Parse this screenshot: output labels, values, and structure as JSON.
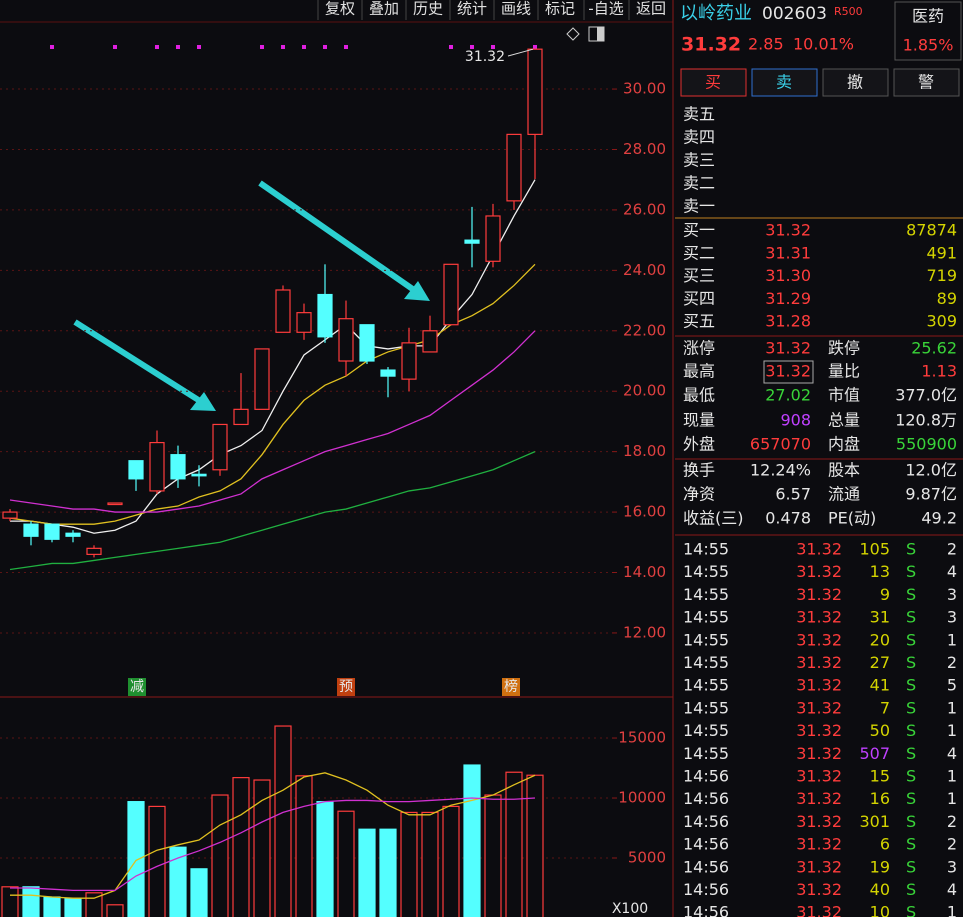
{
  "toolbar": [
    "复权",
    "叠加",
    "历史",
    "统计",
    "画线",
    "标记",
    "-自选",
    "返回"
  ],
  "quote": {
    "name": "以岭药业",
    "code": "002603",
    "badge": "R500",
    "sector": "医药",
    "sector_change": "1.85%",
    "price": "31.32",
    "change": "2.85",
    "change_pct": "10.01%"
  },
  "actions": [
    "买",
    "卖",
    "撤",
    "警"
  ],
  "ask_levels": [
    "卖五",
    "卖四",
    "卖三",
    "卖二",
    "卖一"
  ],
  "bid_levels": [
    [
      "买一",
      "31.32",
      "87874"
    ],
    [
      "买二",
      "31.31",
      "491"
    ],
    [
      "买三",
      "31.30",
      "719"
    ],
    [
      "买四",
      "31.29",
      "89"
    ],
    [
      "买五",
      "31.28",
      "309"
    ]
  ],
  "stats": [
    [
      "涨停",
      "31.32",
      "跌停",
      "25.62"
    ],
    [
      "最高",
      "31.32",
      "量比",
      "1.13"
    ],
    [
      "最低",
      "27.02",
      "市值",
      "377.0亿"
    ],
    [
      "现量",
      "908",
      "总量",
      "120.8万"
    ],
    [
      "外盘",
      "657070",
      "内盘",
      "550900"
    ],
    [
      "换手",
      "12.24%",
      "股本",
      "12.0亿"
    ],
    [
      "净资",
      "6.57",
      "流通",
      "9.87亿"
    ],
    [
      "收益(三)",
      "0.478",
      "PE(动)",
      "49.2"
    ]
  ],
  "trades": [
    {
      "time": "14:55",
      "price": "31.32",
      "volume": "105",
      "side": "S",
      "count": "2",
      "volume_color": "#d4d400"
    },
    {
      "time": "14:55",
      "price": "31.32",
      "volume": "13",
      "side": "S",
      "count": "4",
      "volume_color": "#d4d400"
    },
    {
      "time": "14:55",
      "price": "31.32",
      "volume": "9",
      "side": "S",
      "count": "3",
      "volume_color": "#d4d400"
    },
    {
      "time": "14:55",
      "price": "31.32",
      "volume": "31",
      "side": "S",
      "count": "3",
      "volume_color": "#d4d400"
    },
    {
      "time": "14:55",
      "price": "31.32",
      "volume": "20",
      "side": "S",
      "count": "1",
      "volume_color": "#d4d400"
    },
    {
      "time": "14:55",
      "price": "31.32",
      "volume": "27",
      "side": "S",
      "count": "2",
      "volume_color": "#d4d400"
    },
    {
      "time": "14:55",
      "price": "31.32",
      "volume": "41",
      "side": "S",
      "count": "5",
      "volume_color": "#d4d400"
    },
    {
      "time": "14:55",
      "price": "31.32",
      "volume": "7",
      "side": "S",
      "count": "1",
      "volume_color": "#d4d400"
    },
    {
      "time": "14:55",
      "price": "31.32",
      "volume": "50",
      "side": "S",
      "count": "1",
      "volume_color": "#d4d400"
    },
    {
      "time": "14:55",
      "price": "31.32",
      "volume": "507",
      "side": "S",
      "count": "4",
      "volume_color": "#c040ff"
    },
    {
      "time": "14:56",
      "price": "31.32",
      "volume": "15",
      "side": "S",
      "count": "1",
      "volume_color": "#d4d400"
    },
    {
      "time": "14:56",
      "price": "31.32",
      "volume": "16",
      "side": "S",
      "count": "1",
      "volume_color": "#d4d400"
    },
    {
      "time": "14:56",
      "price": "31.32",
      "volume": "301",
      "side": "S",
      "count": "2",
      "volume_color": "#d4d400"
    },
    {
      "time": "14:56",
      "price": "31.32",
      "volume": "6",
      "side": "S",
      "count": "2",
      "volume_color": "#d4d400"
    },
    {
      "time": "14:56",
      "price": "31.32",
      "volume": "19",
      "side": "S",
      "count": "3",
      "volume_color": "#d4d400"
    },
    {
      "time": "14:56",
      "price": "31.32",
      "volume": "40",
      "side": "S",
      "count": "4",
      "volume_color": "#d4d400"
    },
    {
      "time": "14:56",
      "price": "31.32",
      "volume": "10",
      "side": "S",
      "count": "1",
      "volume_color": "#d4d400"
    }
  ],
  "chart_data": [
    {
      "type": "candlestick",
      "open": [
        15.8,
        15.6,
        15.6,
        15.3,
        14.6,
        16.28,
        17.7,
        16.7,
        17.9,
        17.25,
        17.4,
        18.9,
        19.4,
        21.95,
        21.95,
        23.2,
        21.0,
        22.2,
        20.7,
        20.4,
        21.3,
        22.2,
        25.0,
        24.3,
        26.3,
        28.5
      ],
      "high": [
        16.1,
        15.7,
        15.6,
        15.4,
        14.9,
        16.3,
        17.7,
        18.7,
        18.2,
        17.55,
        18.9,
        20.6,
        21.4,
        23.5,
        22.9,
        24.2,
        23.0,
        22.2,
        20.8,
        22.1,
        22.5,
        24.2,
        26.1,
        26.2,
        28.5,
        31.32
      ],
      "low": [
        15.7,
        14.9,
        15.0,
        15.0,
        14.5,
        16.28,
        16.7,
        16.6,
        16.8,
        16.85,
        17.2,
        18.9,
        19.4,
        21.95,
        21.7,
        21.6,
        20.5,
        20.9,
        19.8,
        20.0,
        21.3,
        22.2,
        24.1,
        24.1,
        26.0,
        27.02
      ],
      "close": [
        16.0,
        15.2,
        15.1,
        15.2,
        14.8,
        16.3,
        17.1,
        18.3,
        17.1,
        17.2,
        18.9,
        19.4,
        21.4,
        23.35,
        22.6,
        21.8,
        22.4,
        21.0,
        20.5,
        21.6,
        22.0,
        24.2,
        24.9,
        25.8,
        28.5,
        31.32
      ],
      "up_color": "#ff3c3c",
      "down_color": "#54ffff",
      "lines": [
        {
          "color": "#f0f0f0",
          "values": [
            15.7,
            15.7,
            15.6,
            15.5,
            15.3,
            15.4,
            15.7,
            16.6,
            17.1,
            17.4,
            17.9,
            18.2,
            18.7,
            20.0,
            21.2,
            21.7,
            22.2,
            21.5,
            21.4,
            21.5,
            21.5,
            22.4,
            23.2,
            24.5,
            25.8,
            27.0
          ]
        },
        {
          "color": "#e0c020",
          "values": [
            15.8,
            15.7,
            15.6,
            15.6,
            15.6,
            15.7,
            15.9,
            16.1,
            16.2,
            16.5,
            16.7,
            17.1,
            17.9,
            18.9,
            19.7,
            20.2,
            20.5,
            21.0,
            21.3,
            21.5,
            21.7,
            22.2,
            22.5,
            22.9,
            23.5,
            24.2
          ]
        },
        {
          "color": "#d030d0",
          "values": [
            16.4,
            16.3,
            16.2,
            16.1,
            16.1,
            16.0,
            16.0,
            16.0,
            16.1,
            16.2,
            16.4,
            16.6,
            17.1,
            17.4,
            17.7,
            18.0,
            18.2,
            18.4,
            18.6,
            18.9,
            19.2,
            19.7,
            20.2,
            20.7,
            21.3,
            22.0
          ]
        },
        {
          "color": "#20b040",
          "values": [
            14.1,
            14.2,
            14.3,
            14.3,
            14.4,
            14.5,
            14.6,
            14.7,
            14.8,
            14.9,
            15.0,
            15.2,
            15.4,
            15.6,
            15.8,
            16.0,
            16.1,
            16.3,
            16.5,
            16.7,
            16.8,
            17.0,
            17.2,
            17.4,
            17.7,
            18.0
          ]
        }
      ],
      "ylim": [
        9.88,
        32.12
      ],
      "yticks": [
        {
          "value": 12,
          "label": "12.00"
        },
        {
          "value": 14,
          "label": "14.00"
        },
        {
          "value": 16,
          "label": "16.00"
        },
        {
          "value": 18,
          "label": "18.00"
        },
        {
          "value": 20,
          "label": "20.00"
        },
        {
          "value": 22,
          "label": "22.00"
        },
        {
          "value": 24,
          "label": "24.00"
        },
        {
          "value": 26,
          "label": "26.00"
        },
        {
          "value": 28,
          "label": "28.00"
        },
        {
          "value": 30,
          "label": "30.00"
        }
      ],
      "grid": true,
      "high_label": "31.32",
      "markers": [
        "减",
        "预",
        "榜"
      ]
    },
    {
      "type": "bar",
      "values": [
        2600,
        2600,
        1750,
        1650,
        2100,
        1100,
        9700,
        9300,
        5900,
        4100,
        10250,
        11700,
        11500,
        16000,
        11850,
        9700,
        8900,
        7400,
        7400,
        8800,
        8800,
        9300,
        12750,
        10250,
        12150,
        11900
      ],
      "lines": [
        {
          "color": "#e0c020",
          "values": [
            1900,
            1900,
            1750,
            1650,
            1650,
            2300,
            4800,
            5650,
            6100,
            6500,
            7750,
            8600,
            9800,
            10650,
            11750,
            12100,
            11500,
            10650,
            9400,
            8600,
            8600,
            9400,
            9800,
            10250,
            11100,
            11900
          ]
        },
        {
          "color": "#d030d0",
          "values": [
            2500,
            2500,
            2400,
            2300,
            2300,
            2300,
            3500,
            4300,
            5000,
            5600,
            6300,
            7100,
            8000,
            8800,
            9300,
            9700,
            9800,
            9800,
            9700,
            9700,
            9800,
            9900,
            10000,
            9900,
            9900,
            10000
          ]
        }
      ],
      "ylim": [
        0,
        18170
      ],
      "yticks": [
        5000,
        10000,
        15000
      ],
      "unit": "X100",
      "grid": true
    }
  ]
}
